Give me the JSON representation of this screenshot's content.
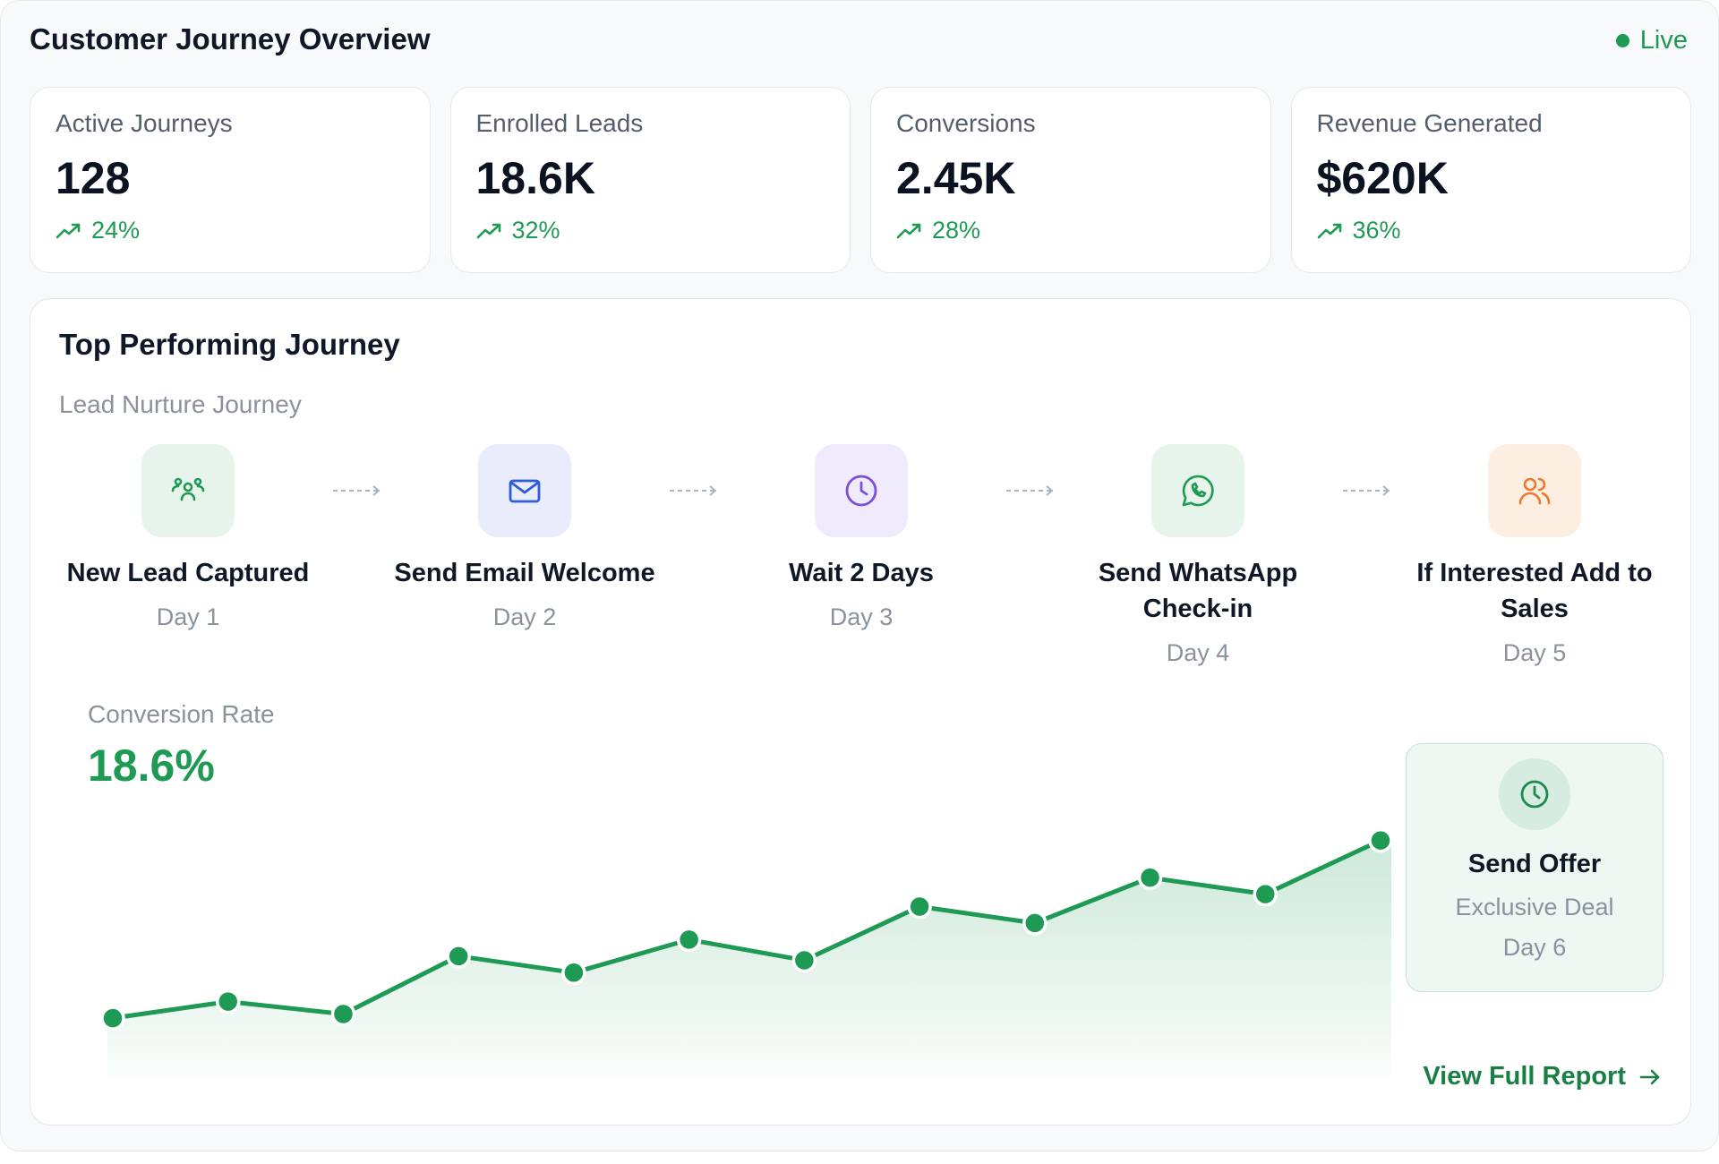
{
  "header": {
    "title": "Customer Journey Overview",
    "status": "Live"
  },
  "kpis": [
    {
      "label": "Active Journeys",
      "value": "128",
      "delta": "24%"
    },
    {
      "label": "Enrolled Leads",
      "value": "18.6K",
      "delta": "32%"
    },
    {
      "label": "Conversions",
      "value": "2.45K",
      "delta": "28%"
    },
    {
      "label": "Revenue Generated",
      "value": "$620K",
      "delta": "36%"
    }
  ],
  "journey": {
    "title": "Top Performing Journey",
    "name": "Lead Nurture Journey",
    "steps": [
      {
        "title": "New Lead Captured",
        "day": "Day 1",
        "icon": "users-group-icon",
        "bg": "#e6f4ec",
        "fg": "#1e9a54"
      },
      {
        "title": "Send Email Welcome",
        "day": "Day 2",
        "icon": "mail-icon",
        "bg": "#e9ecfb",
        "fg": "#2f5ad8"
      },
      {
        "title": "Wait 2 Days",
        "day": "Day 3",
        "icon": "clock-icon",
        "bg": "#efeafc",
        "fg": "#7c4ddb"
      },
      {
        "title": "Send WhatsApp Check-in",
        "day": "Day 4",
        "icon": "whatsapp-icon",
        "bg": "#e6f4ec",
        "fg": "#1e9a54"
      },
      {
        "title": "If Interested Add to Sales",
        "day": "Day 5",
        "icon": "users-icon",
        "bg": "#fdeee2",
        "fg": "#ec7a2e"
      }
    ],
    "conversion": {
      "label": "Conversion Rate",
      "value": "18.6%"
    },
    "offer": {
      "title": "Send Offer",
      "subtitle": "Exclusive Deal",
      "day": "Day 6",
      "icon": "clock-icon"
    },
    "report_link": "View Full Report"
  },
  "chart_data": {
    "type": "area",
    "x": [
      1,
      2,
      3,
      4,
      5,
      6,
      7,
      8,
      9,
      10,
      11,
      12
    ],
    "values": [
      8,
      12,
      9,
      23,
      19,
      27,
      22,
      35,
      31,
      42,
      38,
      51
    ],
    "ylim": [
      0,
      65
    ],
    "grid": false,
    "line_color": "#1e9a54"
  },
  "colors": {
    "accent": "#1e9a54",
    "link": "#1a7f45"
  }
}
